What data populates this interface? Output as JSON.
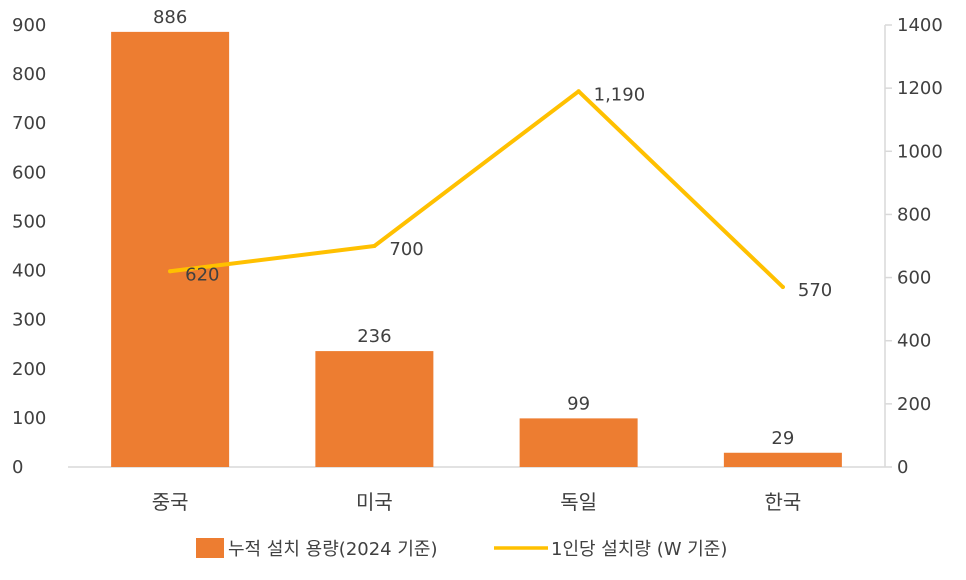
{
  "chart_data": {
    "type": "bar",
    "categories": [
      "중국",
      "미국",
      "독일",
      "한국"
    ],
    "series": [
      {
        "name": "누적 설치 용량(2024 기준)",
        "type": "bar",
        "axis": "left",
        "color": "#ED7D31",
        "values": [
          886,
          236,
          99,
          29
        ],
        "labels": [
          "886",
          "236",
          "99",
          "29"
        ]
      },
      {
        "name": "1인당 설치량 (W 기준)",
        "type": "line",
        "axis": "right",
        "color": "#FFC000",
        "values": [
          620,
          700,
          1190,
          570
        ],
        "labels": [
          "620",
          "700",
          "1,190",
          "570"
        ]
      }
    ],
    "y_left": {
      "min": 0,
      "max": 900,
      "ticks": [
        "0",
        "100",
        "200",
        "300",
        "400",
        "500",
        "600",
        "700",
        "800",
        "900"
      ]
    },
    "y_right": {
      "min": 0,
      "max": 1400,
      "ticks": [
        "0",
        "200",
        "400",
        "600",
        "800",
        "1000",
        "1200",
        "1400"
      ]
    },
    "grid": false,
    "legend_position": "bottom"
  }
}
